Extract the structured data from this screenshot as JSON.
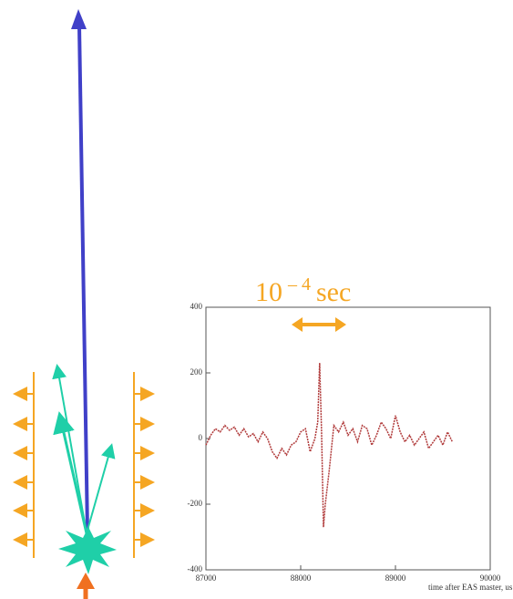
{
  "annotation": {
    "base": "10",
    "exponent": "– 4",
    "unit": "sec"
  },
  "chart_data": {
    "type": "line",
    "xlabel": "time after EAS master, us",
    "x": [
      87000,
      87050,
      87100,
      87150,
      87200,
      87250,
      87300,
      87350,
      87400,
      87450,
      87500,
      87550,
      87600,
      87650,
      87700,
      87750,
      87800,
      87850,
      87900,
      87950,
      88000,
      88050,
      88100,
      88150,
      88180,
      88200,
      88220,
      88240,
      88260,
      88300,
      88350,
      88400,
      88450,
      88500,
      88550,
      88600,
      88650,
      88700,
      88750,
      88800,
      88850,
      88900,
      88950,
      89000,
      89050,
      89100,
      89150,
      89200,
      89250,
      89300,
      89350,
      89400,
      89450,
      89500,
      89550,
      89600
    ],
    "series": [
      {
        "color": "#b03a3a",
        "values": [
          -20,
          10,
          30,
          20,
          40,
          25,
          35,
          10,
          30,
          5,
          15,
          -10,
          20,
          0,
          -40,
          -60,
          -30,
          -50,
          -20,
          -10,
          20,
          30,
          -40,
          0,
          50,
          230,
          20,
          -270,
          -200,
          -100,
          40,
          20,
          50,
          10,
          30,
          -10,
          40,
          30,
          -20,
          10,
          50,
          30,
          0,
          70,
          20,
          -10,
          10,
          -20,
          0,
          20,
          -30,
          -10,
          10,
          -20,
          20,
          -10
        ]
      }
    ],
    "xlim": [
      87000,
      90000
    ],
    "xticks": [
      87000,
      88000,
      89000,
      90000
    ],
    "ylim": [
      -400,
      400
    ],
    "yticks": [
      -400,
      -200,
      0,
      200,
      400
    ]
  }
}
